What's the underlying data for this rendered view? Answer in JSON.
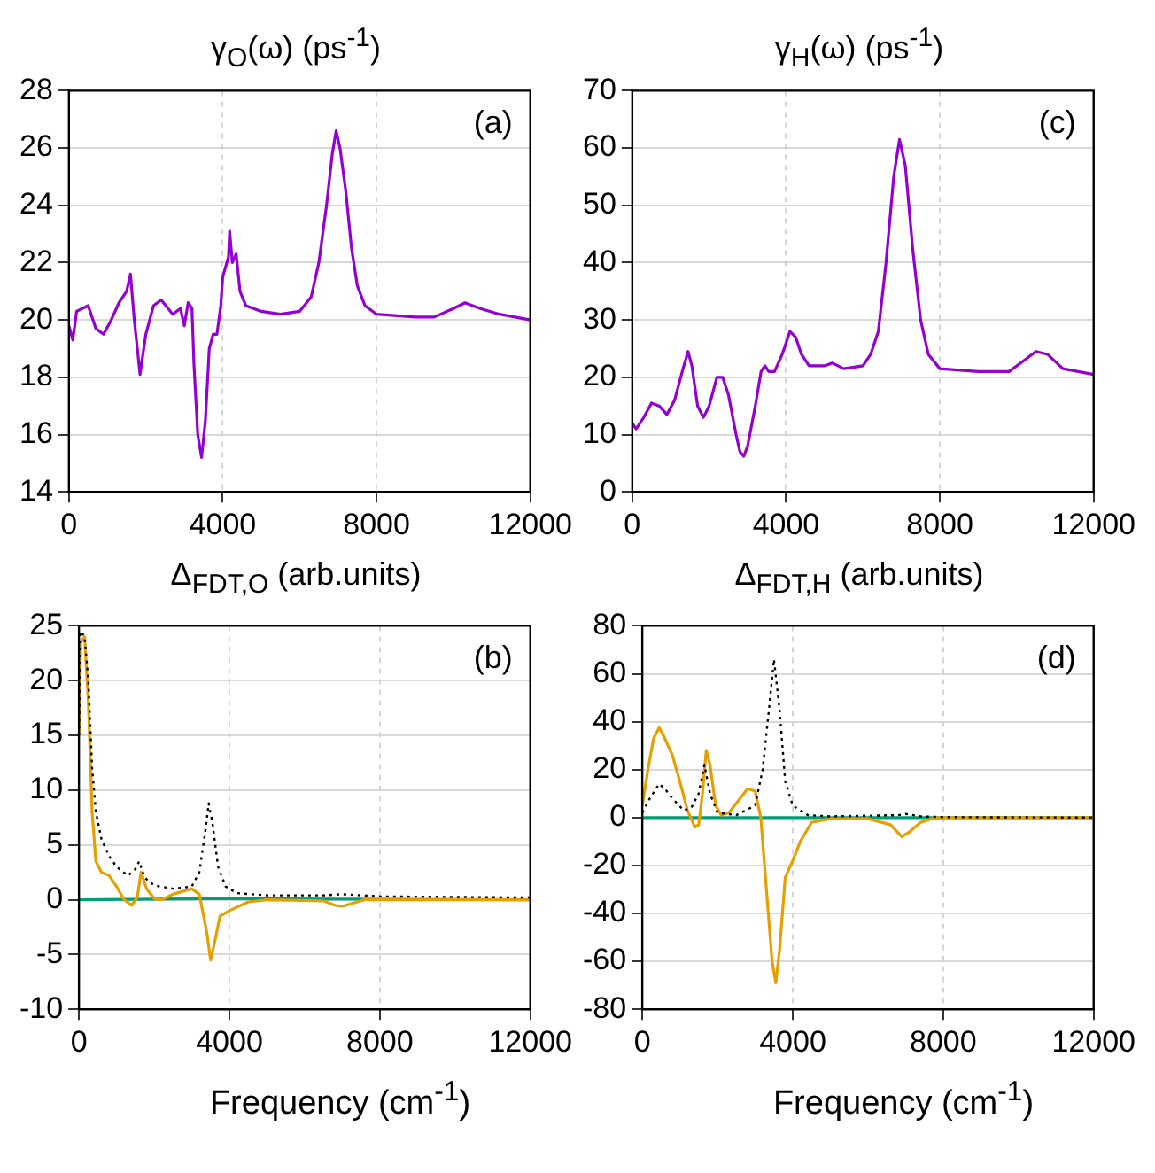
{
  "chart_data": [
    {
      "type": "line",
      "title": "γ$_{O}$(ω) (ps$^{-1}$)",
      "annotations": [
        "(a)"
      ],
      "xlim": [
        0,
        12000
      ],
      "xticks": [
        0,
        4000,
        8000,
        12000
      ],
      "ylim": [
        14,
        28
      ],
      "yticks": [
        14,
        16,
        18,
        20,
        22,
        24,
        26,
        28
      ],
      "grid": true,
      "line_style": "solid",
      "series": [
        {
          "color": "#9400d3",
          "x": [
            0,
            100,
            200,
            500,
            700,
            900,
            1100,
            1300,
            1500,
            1600,
            1700,
            1850,
            2000,
            2200,
            2400,
            2700,
            2900,
            3000,
            3100,
            3200,
            3250,
            3350,
            3450,
            3550,
            3650,
            3750,
            3850,
            3950,
            4000,
            4150,
            4180,
            4250,
            4350,
            4450,
            4600,
            5000,
            5500,
            6000,
            6300,
            6500,
            6700,
            6850,
            6950,
            7050,
            7200,
            7350,
            7500,
            7700,
            8000,
            9000,
            9500,
            10000,
            10300,
            10700,
            11200,
            12000
          ],
          "values": [
            19.8,
            19.3,
            20.3,
            20.5,
            19.7,
            19.5,
            20.0,
            20.6,
            21.0,
            21.6,
            20.0,
            18.1,
            19.5,
            20.5,
            20.7,
            20.2,
            20.4,
            19.8,
            20.6,
            20.4,
            18.5,
            16.0,
            15.2,
            16.5,
            19.0,
            19.5,
            19.5,
            20.5,
            21.5,
            22.2,
            23.1,
            22.0,
            22.3,
            21.0,
            20.5,
            20.3,
            20.2,
            20.3,
            20.8,
            22.0,
            24.0,
            25.8,
            26.6,
            26.0,
            24.5,
            22.5,
            21.2,
            20.5,
            20.2,
            20.1,
            20.1,
            20.4,
            20.6,
            20.4,
            20.2,
            20.0
          ]
        }
      ]
    },
    {
      "type": "line",
      "title": "γ$_{H}$(ω) (ps$^{-1}$)",
      "annotations": [
        "(c)"
      ],
      "xlim": [
        0,
        12000
      ],
      "xticks": [
        0,
        4000,
        8000,
        12000
      ],
      "ylim": [
        0,
        70
      ],
      "yticks": [
        0,
        10,
        20,
        30,
        40,
        50,
        60,
        70
      ],
      "grid": true,
      "line_style": "solid",
      "series": [
        {
          "color": "#9400d3",
          "x": [
            0,
            100,
            300,
            500,
            700,
            900,
            1100,
            1300,
            1450,
            1550,
            1700,
            1850,
            2000,
            2200,
            2350,
            2500,
            2700,
            2800,
            2900,
            3000,
            3200,
            3350,
            3450,
            3550,
            3700,
            3900,
            4100,
            4250,
            4400,
            4600,
            5000,
            5200,
            5500,
            6000,
            6200,
            6400,
            6600,
            6800,
            6950,
            7100,
            7300,
            7500,
            7700,
            8000,
            9000,
            9800,
            10200,
            10500,
            10800,
            11200,
            12000
          ],
          "values": [
            12,
            11,
            13,
            15.5,
            15,
            13.5,
            16,
            21,
            24.5,
            22,
            15,
            13,
            15,
            20,
            20,
            17,
            10,
            7,
            6.2,
            8,
            15,
            21,
            22,
            21,
            21,
            24,
            28,
            27,
            24,
            22,
            22,
            22.5,
            21.5,
            22,
            24,
            28,
            40,
            55,
            61.5,
            57,
            42,
            30,
            24,
            21.5,
            21,
            21,
            23,
            24.5,
            24,
            21.5,
            20.5
          ]
        }
      ]
    },
    {
      "type": "line",
      "title": "Δ$_{FDT,O}$ (arb.units)",
      "xlabel": "Frequency (cm$^{-1}$)",
      "annotations": [
        "(b)"
      ],
      "xlim": [
        0,
        12000
      ],
      "xticks": [
        0,
        4000,
        8000,
        12000
      ],
      "ylim": [
        -10,
        25
      ],
      "yticks": [
        -10,
        -5,
        0,
        5,
        10,
        15,
        20,
        25
      ],
      "grid": true,
      "series": [
        {
          "color": "#000000",
          "line_style": "dotted",
          "x": [
            0,
            50,
            150,
            250,
            350,
            450,
            600,
            800,
            1000,
            1300,
            1500,
            1600,
            1750,
            2000,
            2500,
            3000,
            3200,
            3350,
            3450,
            3550,
            3700,
            3900,
            4200,
            5000,
            6500,
            7000,
            8000,
            12000
          ],
          "values": [
            15,
            24.5,
            24,
            20,
            12,
            8,
            5.5,
            4,
            3,
            2.2,
            2.8,
            3.5,
            2.0,
            1.3,
            1.0,
            1.2,
            2.5,
            6,
            8.8,
            7,
            3,
            1.2,
            0.6,
            0.4,
            0.4,
            0.5,
            0.3,
            0.2
          ]
        },
        {
          "color": "#e69f00",
          "line_style": "solid",
          "x": [
            0,
            50,
            150,
            250,
            350,
            450,
            600,
            800,
            1000,
            1200,
            1400,
            1550,
            1650,
            1800,
            2000,
            2200,
            2500,
            2800,
            3000,
            3200,
            3400,
            3500,
            3600,
            3750,
            4000,
            4500,
            5000,
            6500,
            6800,
            7000,
            7300,
            7600,
            12000
          ],
          "values": [
            15,
            23.5,
            24,
            18,
            8,
            3.5,
            2.5,
            2.2,
            1.2,
            0,
            -0.5,
            0.2,
            2.5,
            1.0,
            0.1,
            0,
            0.5,
            0.8,
            1.0,
            0.5,
            -3,
            -5.5,
            -4,
            -1.5,
            -1,
            -0.2,
            0,
            -0.1,
            -0.5,
            -0.6,
            -0.3,
            0,
            0
          ]
        },
        {
          "color": "#009e73",
          "line_style": "solid",
          "x": [
            0,
            3500,
            12000
          ],
          "values": [
            0,
            0.1,
            0
          ]
        }
      ]
    },
    {
      "type": "line",
      "title": "Δ$_{FDT,H}$ (arb.units)",
      "xlabel": "Frequency (cm$^{-1}$)",
      "annotations": [
        "(d)"
      ],
      "xlim": [
        0,
        12000
      ],
      "xticks": [
        0,
        4000,
        8000,
        12000
      ],
      "ylim": [
        -80,
        80
      ],
      "yticks": [
        -80,
        -60,
        -40,
        -20,
        0,
        20,
        40,
        60,
        80
      ],
      "grid": true,
      "series": [
        {
          "color": "#000000",
          "line_style": "dotted",
          "x": [
            0,
            200,
            450,
            600,
            800,
            1100,
            1300,
            1500,
            1650,
            1800,
            2000,
            2500,
            3000,
            3200,
            3400,
            3500,
            3650,
            3800,
            4000,
            4400,
            5000,
            6800,
            7000,
            7400,
            8000,
            12000
          ],
          "values": [
            2,
            8,
            14,
            12,
            8,
            3,
            4,
            10,
            22,
            10,
            2,
            1,
            5,
            20,
            50,
            66,
            45,
            15,
            5,
            1,
            0.5,
            1,
            1.5,
            0.5,
            0.2,
            0
          ]
        },
        {
          "color": "#e69f00",
          "line_style": "solid",
          "x": [
            0,
            150,
            300,
            450,
            600,
            800,
            1000,
            1200,
            1400,
            1500,
            1600,
            1700,
            1800,
            1950,
            2100,
            2300,
            2600,
            2800,
            3000,
            3150,
            3300,
            3450,
            3550,
            3650,
            3800,
            4000,
            4200,
            4500,
            5000,
            6000,
            6600,
            6900,
            7100,
            7400,
            7800,
            12000
          ],
          "values": [
            5,
            20,
            33,
            37.5,
            33,
            26,
            15,
            3,
            -4,
            -3,
            10,
            28,
            22,
            5,
            1,
            2,
            8,
            12,
            11,
            0,
            -30,
            -60,
            -69,
            -55,
            -25,
            -18,
            -10,
            -2,
            -0.5,
            -0.5,
            -3,
            -8,
            -6,
            -2,
            0,
            0
          ]
        },
        {
          "color": "#009e73",
          "line_style": "solid",
          "x": [
            0,
            12000
          ],
          "values": [
            0,
            0
          ]
        }
      ]
    }
  ]
}
